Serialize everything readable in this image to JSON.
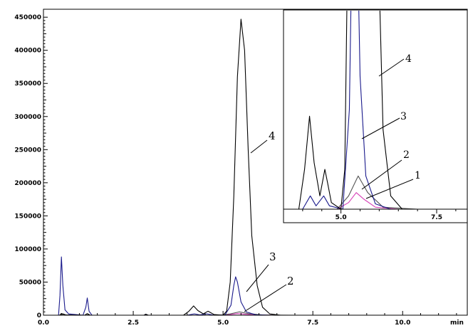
{
  "chart_data": {
    "type": "line",
    "xunit": "min",
    "xlim": [
      0,
      11.8
    ],
    "ylim": [
      0,
      462000
    ],
    "x_ticks": [
      "0.0",
      "2.5",
      "5.0",
      "7.5",
      "10.0"
    ],
    "y_ticks": [
      "0",
      "50000",
      "100000",
      "150000",
      "200000",
      "250000",
      "300000",
      "350000",
      "400000",
      "450000"
    ],
    "grid": false,
    "series": [
      {
        "name": "1",
        "color": "#d63fb6",
        "points": [
          [
            0,
            0
          ],
          [
            4.9,
            0
          ],
          [
            5.2,
            1000
          ],
          [
            5.4,
            2500
          ],
          [
            5.6,
            1500
          ],
          [
            5.9,
            300
          ],
          [
            6.5,
            0
          ],
          [
            7.5,
            0
          ],
          [
            9.5,
            0
          ]
        ]
      },
      {
        "name": "2",
        "color": "#555555",
        "points": [
          [
            0,
            0
          ],
          [
            0.5,
            0
          ],
          [
            0.55,
            2000
          ],
          [
            0.65,
            0
          ],
          [
            1.2,
            0
          ],
          [
            1.25,
            1200
          ],
          [
            1.3,
            0
          ],
          [
            4.9,
            0
          ],
          [
            5.2,
            2000
          ],
          [
            5.45,
            5000
          ],
          [
            5.7,
            2500
          ],
          [
            6.1,
            300
          ],
          [
            7.0,
            0
          ],
          [
            9.5,
            0
          ]
        ]
      },
      {
        "name": "3",
        "color": "#1a1a8c",
        "points": [
          [
            0,
            0
          ],
          [
            0.42,
            0
          ],
          [
            0.46,
            30000
          ],
          [
            0.5,
            88000
          ],
          [
            0.54,
            45000
          ],
          [
            0.6,
            8000
          ],
          [
            0.7,
            2000
          ],
          [
            1.1,
            0
          ],
          [
            1.18,
            12000
          ],
          [
            1.22,
            26000
          ],
          [
            1.27,
            6000
          ],
          [
            1.35,
            0
          ],
          [
            2.8,
            0
          ],
          [
            2.85,
            1500
          ],
          [
            2.9,
            0
          ],
          [
            4.0,
            0
          ],
          [
            4.2,
            2000
          ],
          [
            4.35,
            500
          ],
          [
            4.55,
            2000
          ],
          [
            4.7,
            500
          ],
          [
            5.05,
            0
          ],
          [
            5.22,
            15000
          ],
          [
            5.3,
            45000
          ],
          [
            5.35,
            58000
          ],
          [
            5.4,
            50000
          ],
          [
            5.5,
            20000
          ],
          [
            5.65,
            5000
          ],
          [
            5.9,
            800
          ],
          [
            6.3,
            0
          ],
          [
            9.5,
            0
          ]
        ]
      },
      {
        "name": "4",
        "color": "#000000",
        "points": [
          [
            0,
            0
          ],
          [
            0.45,
            0
          ],
          [
            0.5,
            2500
          ],
          [
            0.6,
            500
          ],
          [
            1.15,
            0
          ],
          [
            1.22,
            2500
          ],
          [
            1.3,
            0
          ],
          [
            2.8,
            0
          ],
          [
            2.85,
            1500
          ],
          [
            2.92,
            0
          ],
          [
            3.9,
            0
          ],
          [
            4.05,
            6000
          ],
          [
            4.18,
            14000
          ],
          [
            4.3,
            7000
          ],
          [
            4.45,
            2000
          ],
          [
            4.58,
            6000
          ],
          [
            4.65,
            4000
          ],
          [
            4.75,
            1000
          ],
          [
            5.0,
            0
          ],
          [
            5.1,
            6000
          ],
          [
            5.2,
            50000
          ],
          [
            5.3,
            180000
          ],
          [
            5.4,
            360000
          ],
          [
            5.5,
            447000
          ],
          [
            5.6,
            400000
          ],
          [
            5.7,
            250000
          ],
          [
            5.8,
            120000
          ],
          [
            5.95,
            45000
          ],
          [
            6.1,
            12000
          ],
          [
            6.3,
            2000
          ],
          [
            6.6,
            0
          ],
          [
            9.5,
            0
          ]
        ]
      }
    ],
    "annotations": [
      "1",
      "2",
      "3",
      "4"
    ],
    "inset": {
      "xlim": [
        3.5,
        8.3
      ],
      "ylim": [
        -3000,
        30000
      ],
      "x_ticks": [
        "5.0",
        "7.5"
      ]
    }
  }
}
